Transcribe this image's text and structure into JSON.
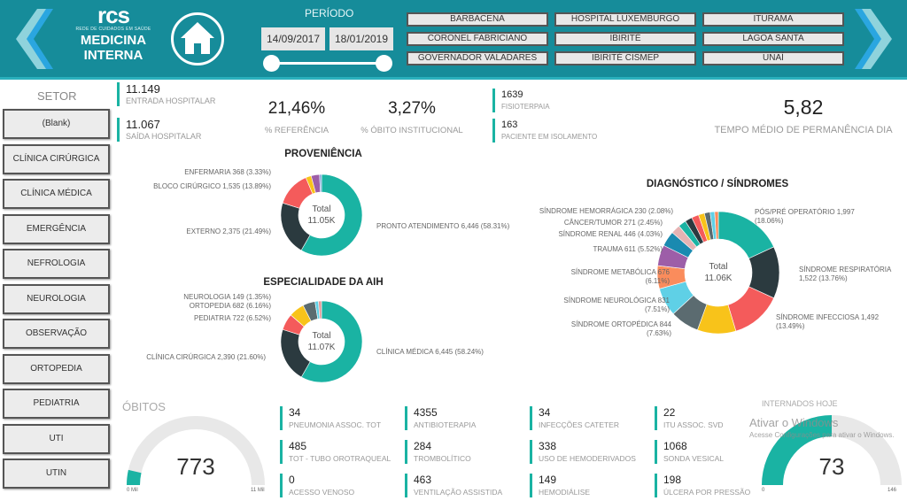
{
  "header": {
    "brand": "rcs",
    "brand_sub": "REDE DE CUIDADOS EM SAÚDE",
    "title_line1": "MEDICINA",
    "title_line2": "INTERNA",
    "period_label": "PERÍODO",
    "date_start": "14/09/2017",
    "date_end": "18/01/2019",
    "hospitals": [
      "BARBACENA",
      "HOSPITAL LUXEMBURGO",
      "ITURAMA",
      "CORONEL FABRICIANO",
      "IBIRITÉ",
      "LAGOA SANTA",
      "GOVERNADOR VALADARES",
      "IBIRITÉ CISMEP",
      "UNAÍ"
    ]
  },
  "sidebar": {
    "title": "SETOR",
    "items": [
      "(Blank)",
      "CLÍNICA CIRÚRGICA",
      "CLÍNICA MÉDICA",
      "EMERGÊNCIA",
      "NEFROLOGIA",
      "NEUROLOGIA",
      "OBSERVAÇÃO",
      "ORTOPEDIA",
      "PEDIATRIA",
      "UTI",
      "UTIN"
    ]
  },
  "kpis": {
    "entrada": {
      "value": "11.149",
      "label": "ENTRADA HOSPITALAR"
    },
    "saida": {
      "value": "11.067",
      "label": "SAÍDA HOSPITALAR"
    },
    "referencia": {
      "value": "21,46%",
      "label": "% REFERÊNCIA"
    },
    "obito": {
      "value": "3,27%",
      "label": "% ÓBITO INSTITUCIONAL"
    },
    "fisio": {
      "value": "1639",
      "label": "FISIOTERPAIA"
    },
    "isolamento": {
      "value": "163",
      "label": "PACIENTE EM ISOLAMENTO"
    },
    "tempo": {
      "value": "5,82",
      "label": "TEMPO MÉDIO DE PERMANÊNCIA DIA"
    }
  },
  "bottom_kpis": [
    {
      "value": "34",
      "label": "PNEUMONIA ASSOC. TOT"
    },
    {
      "value": "4355",
      "label": "ANTIBIOTERAPIA"
    },
    {
      "value": "34",
      "label": "INFECÇÕES CATETER"
    },
    {
      "value": "22",
      "label": "ITU ASSOC. SVD"
    },
    {
      "value": "485",
      "label": "TOT - TUBO OROTRAQUEAL"
    },
    {
      "value": "284",
      "label": "TROMBOLÍTICO"
    },
    {
      "value": "338",
      "label": "USO DE HEMODERIVADOS"
    },
    {
      "value": "1068",
      "label": "SONDA VESICAL"
    },
    {
      "value": "0",
      "label": "ACESSO VENOSO"
    },
    {
      "value": "463",
      "label": "VENTILAÇÃO ASSISTIDA"
    },
    {
      "value": "149",
      "label": "HEMODIÁLISE"
    },
    {
      "value": "198",
      "label": "ÚLCERA POR PRESSÃO"
    }
  ],
  "watermark": {
    "line1": "Ativar o Windows",
    "line2": "Acesse Configurações para ativar o Windows."
  },
  "colors": {
    "header": "#168c9a",
    "accent": "#1ab3a3",
    "dark": "#2b3a3f",
    "red": "#f45b5b",
    "yellow": "#f8c31a"
  },
  "chart_data": [
    {
      "type": "pie",
      "title": "PROVENIÊNCIA",
      "center_label": "Total",
      "center_value": "11.05K",
      "slices": [
        {
          "label": "PRONTO ATENDIMENTO 6,446 (58.31%)",
          "value": 58.31,
          "color": "#1ab3a3"
        },
        {
          "label": "EXTERNO 2,375 (21.49%)",
          "value": 21.49,
          "color": "#2b3a3f"
        },
        {
          "label": "BLOCO CIRÚRGICO 1,535 (13.89%)",
          "value": 13.89,
          "color": "#f45b5b"
        },
        {
          "label": "",
          "value": 2.2,
          "color": "#f8c31a"
        },
        {
          "label": "ENFERMARIA 368 (3.33%)",
          "value": 3.33,
          "color": "#9d5ea8"
        },
        {
          "label": "",
          "value": 0.78,
          "color": "#7a9fd6"
        }
      ]
    },
    {
      "type": "pie",
      "title": "ESPECIALIDADE DA AIH",
      "center_label": "Total",
      "center_value": "11.07K",
      "slices": [
        {
          "label": "CLÍNICA MÉDICA 6,445 (58.24%)",
          "value": 58.24,
          "color": "#1ab3a3"
        },
        {
          "label": "CLÍNICA CIRÚRGICA 2,390 (21.60%)",
          "value": 21.6,
          "color": "#2b3a3f"
        },
        {
          "label": "PEDIATRIA 722 (6.52%)",
          "value": 6.52,
          "color": "#f45b5b"
        },
        {
          "label": "ORTOPEDIA 682 (6.16%)",
          "value": 6.16,
          "color": "#f8c31a"
        },
        {
          "label": "",
          "value": 4.9,
          "color": "#5b6b70"
        },
        {
          "label": "NEUROLOGIA 149 (1.35%)",
          "value": 1.35,
          "color": "#5fd0e6"
        },
        {
          "label": "",
          "value": 1.23,
          "color": "#e59a9a"
        }
      ]
    },
    {
      "type": "pie",
      "title": "DIAGNÓSTICO / SÍNDROMES",
      "center_label": "Total",
      "center_value": "11.06K",
      "slices": [
        {
          "label": "PÓS/PRÉ OPERATÓRIO 1,997 (18.06%)",
          "value": 18.06,
          "color": "#1ab3a3"
        },
        {
          "label": "SÍNDROME RESPIRATÓRIA 1,522 (13.76%)",
          "value": 13.76,
          "color": "#2b3a3f"
        },
        {
          "label": "SÍNDROME INFECCIOSA 1,492 (13.49%)",
          "value": 13.49,
          "color": "#f45b5b"
        },
        {
          "label": "",
          "value": 10.2,
          "color": "#f8c31a"
        },
        {
          "label": "SÍNDROME ORTOPÉDICA 844 (7.63%)",
          "value": 7.63,
          "color": "#5b6b70"
        },
        {
          "label": "SÍNDROME NEUROLÓGICA 831 (7.51%)",
          "value": 7.51,
          "color": "#5fd0e6"
        },
        {
          "label": "SÍNDROME METABÓLICA 676 (6.11%)",
          "value": 6.11,
          "color": "#fa8c5c"
        },
        {
          "label": "TRAUMA 611 (5.52%)",
          "value": 5.52,
          "color": "#9d5ea8"
        },
        {
          "label": "SÍNDROME RENAL 446 (4.03%)",
          "value": 4.03,
          "color": "#1a8ab0"
        },
        {
          "label": "CÂNCER/TUMOR 271 (2.45%)",
          "value": 2.45,
          "color": "#e6b3b3"
        },
        {
          "label": "SÍNDROME HEMORRÁGICA 230 (2.08%)",
          "value": 2.08,
          "color": "#1ab3a3"
        },
        {
          "label": "",
          "value": 1.9,
          "color": "#2b3a3f"
        },
        {
          "label": "",
          "value": 1.9,
          "color": "#f45b5b"
        },
        {
          "label": "",
          "value": 1.6,
          "color": "#f8c31a"
        },
        {
          "label": "",
          "value": 1.5,
          "color": "#5b6b70"
        },
        {
          "label": "",
          "value": 1.2,
          "color": "#5fd0e6"
        },
        {
          "label": "",
          "value": 0.96,
          "color": "#fa8c5c"
        }
      ]
    },
    {
      "type": "gauge",
      "title": "ÓBITOS",
      "value": 773,
      "value_label": "773",
      "min_label": "0 Mil",
      "max_label": "11 Mil",
      "min": 0,
      "max": 11000
    },
    {
      "type": "gauge",
      "title": "INTERNADOS HOJE",
      "value": 73,
      "value_label": "73",
      "min_label": "0",
      "max_label": "146",
      "min": 0,
      "max": 146
    }
  ]
}
